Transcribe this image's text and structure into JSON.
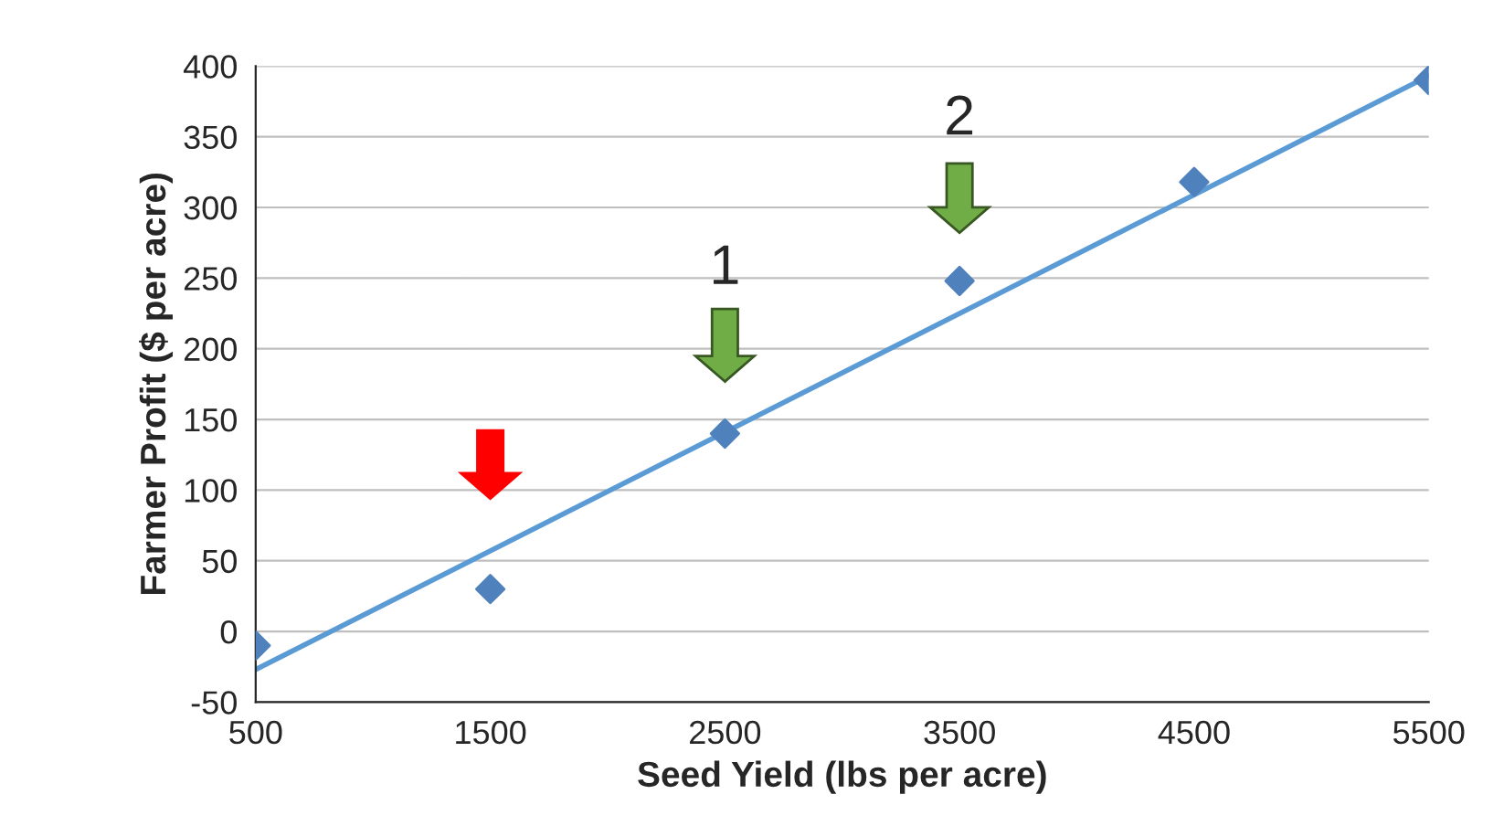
{
  "chart_data": {
    "type": "scatter",
    "xlabel": "Seed Yield (lbs per acre)",
    "ylabel": "Farmer Profit ($ per acre)",
    "x": [
      500,
      1500,
      2500,
      3500,
      4500,
      5500
    ],
    "series": [
      {
        "color": "#4f81bd",
        "marker": "diamond",
        "values": [
          -10,
          30,
          140,
          248,
          318,
          390
        ]
      },
      {
        "type": "line",
        "color": "#5b9bd5",
        "marker": "none",
        "x": [
          500,
          5500
        ],
        "values": [
          -27,
          393
        ]
      }
    ],
    "xlim": [
      500,
      5500
    ],
    "xticks": [
      500,
      1500,
      2500,
      3500,
      4500,
      5500
    ],
    "ylim": [
      -50,
      400
    ],
    "yticks": [
      -50,
      0,
      50,
      100,
      150,
      200,
      250,
      300,
      350,
      400
    ],
    "grid": "y",
    "legend": false,
    "annotations": [
      "1",
      "2"
    ]
  }
}
